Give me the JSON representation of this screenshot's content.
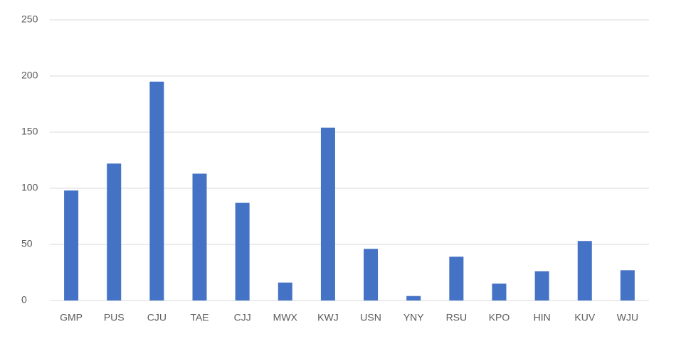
{
  "chart_data": {
    "type": "bar",
    "categories": [
      "GMP",
      "PUS",
      "CJU",
      "TAE",
      "CJJ",
      "MWX",
      "KWJ",
      "USN",
      "YNY",
      "RSU",
      "KPO",
      "HIN",
      "KUV",
      "WJU"
    ],
    "values": [
      98,
      122,
      195,
      113,
      87,
      16,
      154,
      46,
      4,
      39,
      15,
      26,
      53,
      27
    ],
    "color": "#4472c4",
    "ylim": [
      0,
      250
    ],
    "yticks": [
      0,
      50,
      100,
      150,
      200,
      250
    ],
    "grid": true
  }
}
